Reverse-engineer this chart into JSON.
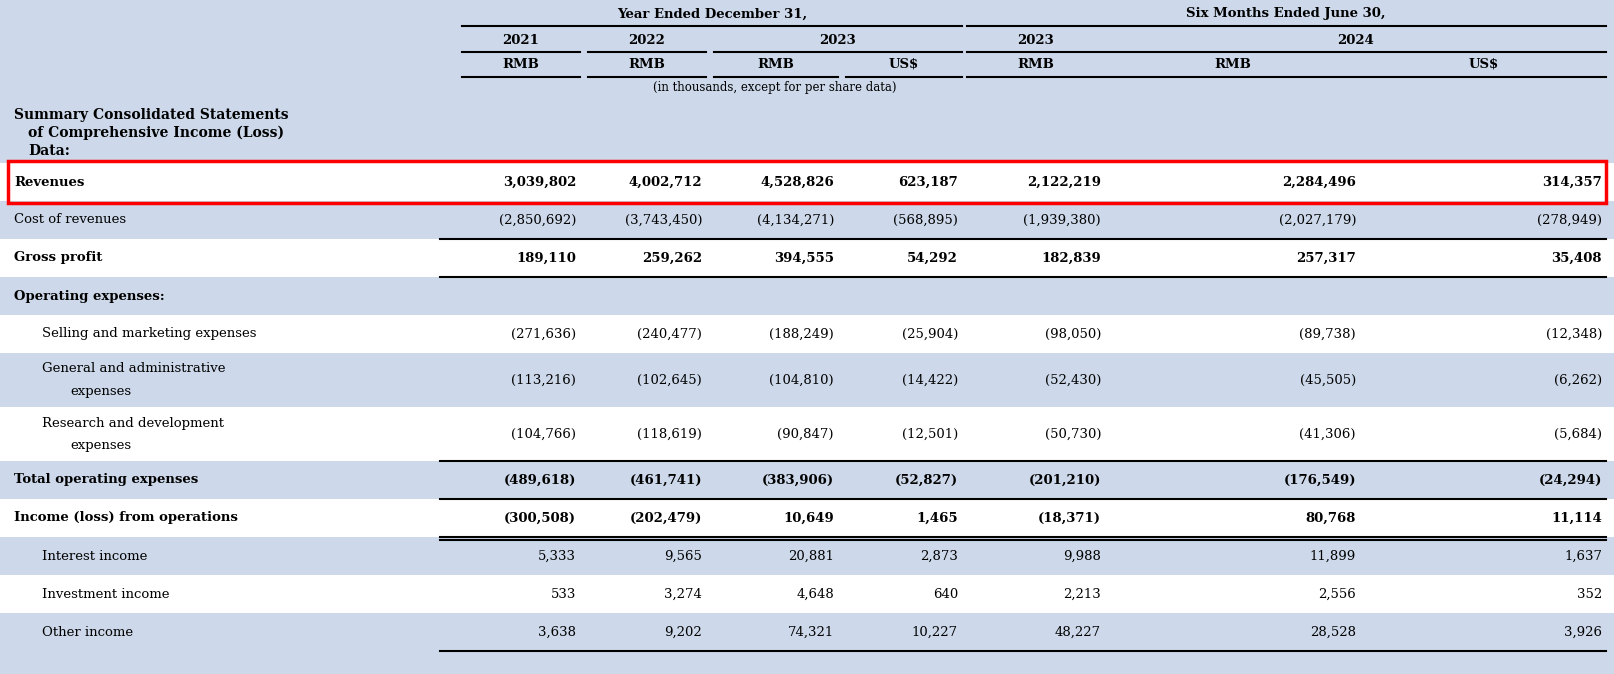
{
  "bg_color": "#cdd9ea",
  "white_bg": "#ffffff",
  "blue_bg": "#cdd9ea",
  "header_texts": {
    "year_ended": "Year Ended December 31,",
    "six_months": "Six Months Ended June 30,",
    "y2021": "2021",
    "y2022": "2022",
    "y2023": "2023",
    "h2023": "2023",
    "y2024": "2024",
    "rmb": "RMB",
    "usd": "US$",
    "note": "(in thousands, except for per share data)"
  },
  "section_title_lines": [
    "Summary Consolidated Statements",
    "of Comprehensive Income (Loss)",
    "Data:"
  ],
  "rows": [
    {
      "label": "Revenues",
      "values": [
        "3,039,802",
        "4,002,712",
        "4,528,826",
        "623,187",
        "2,122,219",
        "2,284,496",
        "314,357"
      ],
      "bold": true,
      "bg": "#ffffff",
      "red_box": true,
      "indent": 0,
      "multiline": false,
      "top_line": false,
      "bottom_line": false,
      "double_bottom": false
    },
    {
      "label": "Cost of revenues",
      "values": [
        "(2,850,692)",
        "(3,743,450)",
        "(4,134,271)",
        "(568,895)",
        "(1,939,380)",
        "(2,027,179)",
        "(278,949)"
      ],
      "bold": false,
      "bg": "#cdd9ea",
      "red_box": false,
      "indent": 0,
      "multiline": false,
      "top_line": false,
      "bottom_line": false,
      "double_bottom": false
    },
    {
      "label": "Gross profit",
      "values": [
        "189,110",
        "259,262",
        "394,555",
        "54,292",
        "182,839",
        "257,317",
        "35,408"
      ],
      "bold": true,
      "bg": "#ffffff",
      "red_box": false,
      "indent": 0,
      "multiline": false,
      "top_line": true,
      "bottom_line": true,
      "double_bottom": false
    },
    {
      "label": "Operating expenses:",
      "values": [
        "",
        "",
        "",
        "",
        "",
        "",
        ""
      ],
      "bold": true,
      "bg": "#cdd9ea",
      "red_box": false,
      "indent": 0,
      "multiline": false,
      "top_line": false,
      "bottom_line": false,
      "double_bottom": false
    },
    {
      "label": "Selling and marketing expenses",
      "values": [
        "(271,636)",
        "(240,477)",
        "(188,249)",
        "(25,904)",
        "(98,050)",
        "(89,738)",
        "(12,348)"
      ],
      "bold": false,
      "bg": "#ffffff",
      "red_box": false,
      "indent": 1,
      "multiline": false,
      "top_line": false,
      "bottom_line": false,
      "double_bottom": false
    },
    {
      "label": "General and administrative\nexpenses",
      "values": [
        "(113,216)",
        "(102,645)",
        "(104,810)",
        "(14,422)",
        "(52,430)",
        "(45,505)",
        "(6,262)"
      ],
      "bold": false,
      "bg": "#cdd9ea",
      "red_box": false,
      "indent": 1,
      "multiline": true,
      "top_line": false,
      "bottom_line": false,
      "double_bottom": false
    },
    {
      "label": "Research and development\nexpenses",
      "values": [
        "(104,766)",
        "(118,619)",
        "(90,847)",
        "(12,501)",
        "(50,730)",
        "(41,306)",
        "(5,684)"
      ],
      "bold": false,
      "bg": "#ffffff",
      "red_box": false,
      "indent": 1,
      "multiline": true,
      "top_line": false,
      "bottom_line": false,
      "double_bottom": false
    },
    {
      "label": "Total operating expenses",
      "values": [
        "(489,618)",
        "(461,741)",
        "(383,906)",
        "(52,827)",
        "(201,210)",
        "(176,549)",
        "(24,294)"
      ],
      "bold": true,
      "bg": "#cdd9ea",
      "red_box": false,
      "indent": 0,
      "multiline": false,
      "top_line": true,
      "bottom_line": true,
      "double_bottom": false
    },
    {
      "label": "Income (loss) from operations",
      "values": [
        "(300,508)",
        "(202,479)",
        "10,649",
        "1,465",
        "(18,371)",
        "80,768",
        "11,114"
      ],
      "bold": true,
      "bg": "#ffffff",
      "red_box": false,
      "indent": 0,
      "multiline": false,
      "top_line": false,
      "bottom_line": true,
      "double_bottom": true
    },
    {
      "label": "Interest income",
      "values": [
        "5,333",
        "9,565",
        "20,881",
        "2,873",
        "9,988",
        "11,899",
        "1,637"
      ],
      "bold": false,
      "bg": "#cdd9ea",
      "red_box": false,
      "indent": 1,
      "multiline": false,
      "top_line": false,
      "bottom_line": false,
      "double_bottom": false
    },
    {
      "label": "Investment income",
      "values": [
        "533",
        "3,274",
        "4,648",
        "640",
        "2,213",
        "2,556",
        "352"
      ],
      "bold": false,
      "bg": "#ffffff",
      "red_box": false,
      "indent": 1,
      "multiline": false,
      "top_line": false,
      "bottom_line": false,
      "double_bottom": false
    },
    {
      "label": "Other income",
      "values": [
        "3,638",
        "9,202",
        "74,321",
        "10,227",
        "48,227",
        "28,528",
        "3,926"
      ],
      "bold": false,
      "bg": "#cdd9ea",
      "red_box": false,
      "indent": 1,
      "multiline": false,
      "top_line": false,
      "bottom_line": true,
      "double_bottom": false
    }
  ]
}
